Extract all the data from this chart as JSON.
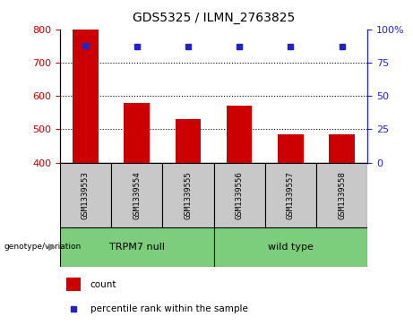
{
  "title": "GDS5325 / ILMN_2763825",
  "samples": [
    "GSM1339553",
    "GSM1339554",
    "GSM1339555",
    "GSM1339556",
    "GSM1339557",
    "GSM1339558"
  ],
  "counts": [
    800,
    580,
    530,
    570,
    485,
    485
  ],
  "percentiles": [
    88,
    87,
    87,
    87,
    87,
    87
  ],
  "groups": [
    {
      "label": "TRPM7 null",
      "indices": [
        0,
        1,
        2
      ],
      "color": "#7CCD7C"
    },
    {
      "label": "wild type",
      "indices": [
        3,
        4,
        5
      ],
      "color": "#7CCD7C"
    }
  ],
  "ylim_left": [
    400,
    800
  ],
  "ylim_right": [
    0,
    100
  ],
  "yticks_left": [
    400,
    500,
    600,
    700,
    800
  ],
  "yticks_right": [
    0,
    25,
    50,
    75,
    100
  ],
  "bar_color": "#CC0000",
  "dot_color": "#2222CC",
  "grid_color": "#000000",
  "bg_color": "#FFFFFF",
  "label_bg_color": "#C8C8C8",
  "group_bg_color": "#7CCD7C",
  "legend_count_label": "count",
  "legend_percentile_label": "percentile rank within the sample",
  "genotype_label": "genotype/variation"
}
